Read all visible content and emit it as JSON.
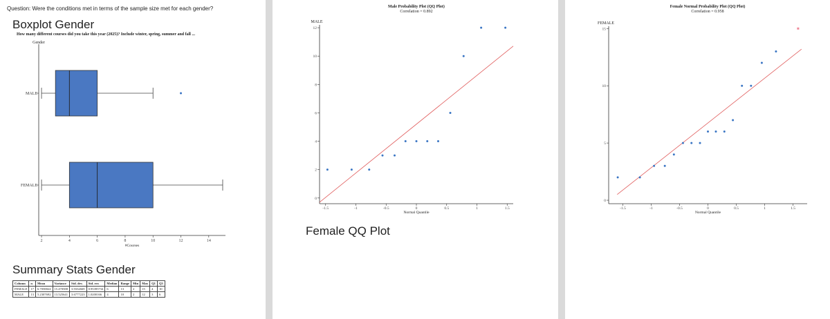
{
  "page1": {
    "question": "Question: Were the conditions met in terms of the sample size met for each gender?",
    "boxplot_title": "Boxplot Gender",
    "boxplot_subtitle": "How many different courses did you take this year (2025)? Include winter, spring, summer and fall ...",
    "summary_title": "Summary Stats Gender"
  },
  "page3": {
    "heading": "Female QQ Plot"
  },
  "colors": {
    "box_fill": "#4a78c2",
    "point": "#3b76c4",
    "fit_line": "#e05a5a",
    "highlight_point": "#f08a9a"
  },
  "chart_data": [
    {
      "type": "boxplot",
      "title": "",
      "ylabel": "Gender",
      "xlabel": "#Courses",
      "xlim": [
        1.8,
        15.2
      ],
      "xticks": [
        2,
        4,
        6,
        8,
        10,
        12,
        14
      ],
      "groups": [
        {
          "name": "MALE",
          "min": 2,
          "q1": 3,
          "median": 4,
          "q3": 6,
          "max": 10,
          "outliers": [
            12
          ]
        },
        {
          "name": "FEMALE",
          "min": 2,
          "q1": 4,
          "median": 6,
          "q3": 10,
          "max": 15,
          "outliers": []
        }
      ]
    },
    {
      "type": "scatter",
      "title": "Male Probability Plot (QQ Plot)",
      "subtitle": "Correlation = 0.892",
      "ylabel": "MALE",
      "xlabel": "Normal Quantile",
      "xlim": [
        -1.6,
        1.6
      ],
      "ylim": [
        -0.4,
        12.2
      ],
      "xticks": [
        -1.5,
        -1,
        -0.5,
        0,
        0.5,
        1,
        1.5
      ],
      "yticks": [
        0,
        2,
        4,
        6,
        8,
        10,
        12
      ],
      "points": [
        {
          "x": -1.47,
          "y": 2
        },
        {
          "x": -1.07,
          "y": 2
        },
        {
          "x": -0.78,
          "y": 2
        },
        {
          "x": -0.56,
          "y": 3
        },
        {
          "x": -0.36,
          "y": 3
        },
        {
          "x": -0.18,
          "y": 4
        },
        {
          "x": 0.0,
          "y": 4
        },
        {
          "x": 0.18,
          "y": 4
        },
        {
          "x": 0.36,
          "y": 4
        },
        {
          "x": 0.56,
          "y": 6
        },
        {
          "x": 0.78,
          "y": 10
        },
        {
          "x": 1.07,
          "y": 12
        },
        {
          "x": 1.47,
          "y": 12
        }
      ],
      "fit_line": [
        {
          "x": -1.6,
          "y": -0.3
        },
        {
          "x": 1.6,
          "y": 10.7
        }
      ]
    },
    {
      "type": "scatter",
      "title": "Female Normal Probability Plot (QQ Plot)",
      "subtitle": "Correlation = 0.958",
      "ylabel": "FEMALE",
      "xlabel": "Normal Quantile",
      "xlim": [
        -1.75,
        1.75
      ],
      "ylim": [
        -0.3,
        15.2
      ],
      "xticks": [
        -1.5,
        -1,
        -0.5,
        0,
        0.5,
        1,
        1.5
      ],
      "yticks": [
        0,
        5,
        10,
        15
      ],
      "points": [
        {
          "x": -1.59,
          "y": 2
        },
        {
          "x": -1.2,
          "y": 2
        },
        {
          "x": -0.95,
          "y": 3
        },
        {
          "x": -0.76,
          "y": 3
        },
        {
          "x": -0.6,
          "y": 4
        },
        {
          "x": -0.44,
          "y": 5
        },
        {
          "x": -0.29,
          "y": 5
        },
        {
          "x": -0.14,
          "y": 5
        },
        {
          "x": 0.0,
          "y": 6
        },
        {
          "x": 0.14,
          "y": 6
        },
        {
          "x": 0.29,
          "y": 6
        },
        {
          "x": 0.44,
          "y": 7
        },
        {
          "x": 0.6,
          "y": 10
        },
        {
          "x": 0.76,
          "y": 10
        },
        {
          "x": 0.95,
          "y": 12
        },
        {
          "x": 1.2,
          "y": 13
        },
        {
          "x": 1.59,
          "y": 15,
          "highlight": true
        }
      ],
      "fit_line": [
        {
          "x": -1.6,
          "y": 0.5
        },
        {
          "x": 1.65,
          "y": 13.2
        }
      ]
    }
  ],
  "summary_table": {
    "headers": [
      "Column",
      "n",
      "Mean",
      "Variance",
      "Std. dev.",
      "Std. err.",
      "Median",
      "Range",
      "Min",
      "Max",
      "Q1",
      "Q3"
    ],
    "rows": [
      [
        "FEMALE",
        "17",
        "6.7058824",
        "15.470588",
        "3.9332669",
        "0.95395734",
        "6",
        "13",
        "2",
        "15",
        "4",
        "10"
      ],
      [
        "MALE",
        "13",
        "5.2307692",
        "13.525641",
        "3.6777223",
        "1.0200166",
        "4",
        "10",
        "2",
        "12",
        "3",
        "6"
      ]
    ]
  }
}
